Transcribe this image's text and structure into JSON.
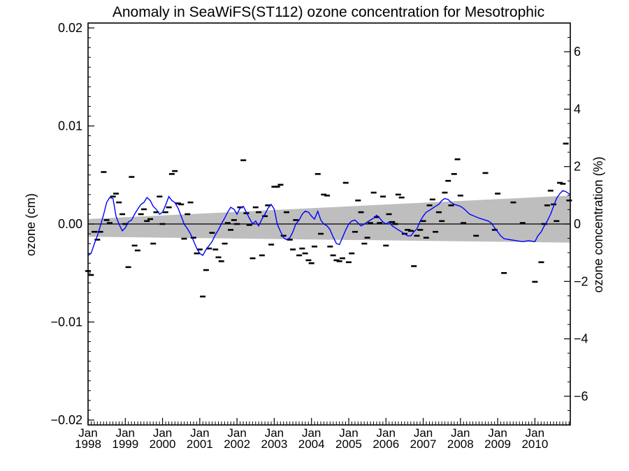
{
  "chart_data": {
    "type": "line",
    "title": "Anomaly in SeaWiFS(ST112) ozone concentration for Mesotrophic",
    "ylabel_left": "ozone (cm)",
    "ylabel_right": "ozone concentration (%)",
    "xlim": [
      1998.0,
      2010.95
    ],
    "ylim_left": [
      -0.0205,
      0.0205
    ],
    "ylim_right": [
      -7.0,
      7.0
    ],
    "yticks_left": [
      {
        "v": 0.02,
        "label": "0.02"
      },
      {
        "v": 0.01,
        "label": "0.01"
      },
      {
        "v": 0.0,
        "label": "0.00"
      },
      {
        "v": -0.01,
        "label": "−0.01"
      },
      {
        "v": -0.02,
        "label": "−0.02"
      }
    ],
    "yticks_right": [
      {
        "v": 6,
        "label": "6"
      },
      {
        "v": 4,
        "label": "4"
      },
      {
        "v": 2,
        "label": "2"
      },
      {
        "v": 0,
        "label": "0"
      },
      {
        "v": -2,
        "label": "−2"
      },
      {
        "v": -4,
        "label": "−4"
      },
      {
        "v": -6,
        "label": "−6"
      }
    ],
    "xticks": [
      {
        "v": 1998,
        "month": "Jan",
        "year": "1998"
      },
      {
        "v": 1999,
        "month": "Jan",
        "year": "1999"
      },
      {
        "v": 2000,
        "month": "Jan",
        "year": "2000"
      },
      {
        "v": 2001,
        "month": "Jan",
        "year": "2001"
      },
      {
        "v": 2002,
        "month": "Jan",
        "year": "2002"
      },
      {
        "v": 2003,
        "month": "Jan",
        "year": "2003"
      },
      {
        "v": 2004,
        "month": "Jan",
        "year": "2004"
      },
      {
        "v": 2005,
        "month": "Jan",
        "year": "2005"
      },
      {
        "v": 2006,
        "month": "Jan",
        "year": "2006"
      },
      {
        "v": 2007,
        "month": "Jan",
        "year": "2007"
      },
      {
        "v": 2008,
        "month": "Jan",
        "year": "2008"
      },
      {
        "v": 2009,
        "month": "Jan",
        "year": "2009"
      },
      {
        "v": 2010,
        "month": "Jan",
        "year": "2010"
      }
    ],
    "trend_band": {
      "x": [
        1998.0,
        2010.95
      ],
      "upper": [
        0.0005,
        0.0029
      ],
      "lower": [
        -0.0013,
        -0.0019
      ]
    },
    "zero_line": 0.0,
    "line_color": "#0000ff",
    "band_color": "#bebebe",
    "series": [
      {
        "kind": "monthly_anomalies",
        "x": [
          1998.0,
          1998.08,
          1998.17,
          1998.25,
          1998.33,
          1998.42,
          1998.5,
          1998.58,
          1998.67,
          1998.75,
          1998.83,
          1998.92,
          1999.0,
          1999.08,
          1999.17,
          1999.25,
          1999.33,
          1999.42,
          1999.5,
          1999.58,
          1999.67,
          1999.75,
          1999.83,
          1999.92,
          2000.0,
          2000.08,
          2000.17,
          2000.25,
          2000.33,
          2000.42,
          2000.5,
          2000.58,
          2000.67,
          2000.75,
          2000.83,
          2000.92,
          2001.0,
          2001.08,
          2001.17,
          2001.25,
          2001.33,
          2001.42,
          2001.5,
          2001.58,
          2001.67,
          2001.75,
          2001.83,
          2001.92,
          2002.0,
          2002.08,
          2002.17,
          2002.25,
          2002.33,
          2002.42,
          2002.5,
          2002.58,
          2002.67,
          2002.75,
          2002.83,
          2002.92,
          2003.0,
          2003.08,
          2003.17,
          2003.25,
          2003.33,
          2003.42,
          2003.5,
          2003.58,
          2003.67,
          2003.75,
          2003.83,
          2003.92,
          2004.0,
          2004.08,
          2004.17,
          2004.25,
          2004.33,
          2004.42,
          2004.5,
          2004.58,
          2004.67,
          2004.75,
          2004.83,
          2004.92,
          2005.0,
          2005.08,
          2005.17,
          2005.25,
          2005.33,
          2005.42,
          2005.5,
          2005.58,
          2005.67,
          2005.75,
          2005.83,
          2005.92,
          2006.0,
          2006.08,
          2006.17,
          2006.25,
          2006.33,
          2006.42,
          2006.5,
          2006.58,
          2006.67,
          2006.75,
          2006.83,
          2006.92,
          2007.0,
          2007.08,
          2007.17,
          2007.25,
          2007.33,
          2007.42,
          2007.5,
          2007.58,
          2007.67,
          2007.75,
          2007.83,
          2007.92,
          2008.0,
          2008.08,
          2008.42,
          2008.67,
          2008.92,
          2009.0,
          2009.17,
          2009.42,
          2009.67,
          2010.0,
          2010.17,
          2010.25,
          2010.33,
          2010.42,
          2010.5,
          2010.58,
          2010.67,
          2010.75,
          2010.83,
          2010.92
        ],
        "y": [
          -0.0048,
          -0.0052,
          -0.0008,
          -0.0016,
          -0.0008,
          0.0053,
          0.0004,
          0.0001,
          0.0028,
          0.0031,
          0.0022,
          0.001,
          0.0,
          -0.0044,
          0.0048,
          -0.0022,
          -0.0027,
          0.001,
          0.0015,
          0.0003,
          0.0005,
          -0.002,
          0.0012,
          0.0028,
          0.0,
          0.0012,
          0.0017,
          0.0051,
          0.0054,
          0.0021,
          0.002,
          -0.0015,
          0.001,
          0.0022,
          -0.0014,
          -0.003,
          -0.0026,
          -0.0074,
          -0.0047,
          -0.0025,
          -0.0009,
          -0.0026,
          -0.0034,
          -0.0038,
          -0.002,
          0.0001,
          -0.0006,
          0.0004,
          0.0,
          0.0017,
          0.0065,
          0.0011,
          -0.0001,
          -0.0035,
          0.0017,
          0.0012,
          -0.0032,
          0.0008,
          0.0019,
          -0.0021,
          0.0038,
          0.0038,
          0.004,
          -0.0012,
          0.0012,
          -0.0016,
          -0.0026,
          0.0004,
          -0.0032,
          -0.0025,
          -0.003,
          -0.0037,
          -0.004,
          -0.0023,
          0.0051,
          -0.001,
          0.003,
          0.0029,
          -0.0023,
          -0.0032,
          -0.0037,
          -0.0038,
          -0.0035,
          0.0042,
          -0.0039,
          -0.003,
          -0.0008,
          0.0024,
          0.0012,
          -0.002,
          -0.0014,
          0.0001,
          0.0032,
          0.0007,
          0.0001,
          0.0028,
          -0.0022,
          0.001,
          0.0002,
          0.0,
          0.003,
          0.0027,
          -0.001,
          -0.0006,
          -0.0007,
          -0.0043,
          -0.0012,
          -0.0006,
          0.0003,
          -0.0014,
          0.0019,
          0.0025,
          -0.0008,
          0.0012,
          0.0003,
          0.0032,
          0.0044,
          0.0019,
          0.0051,
          0.0066,
          0.0029,
          0.0001,
          -0.0012,
          0.0052,
          -0.0006,
          0.0031,
          -0.005,
          0.0022,
          0.0001,
          -0.0059,
          -0.0039,
          0.0,
          0.0019,
          0.0034,
          0.002,
          0.0003,
          0.0042,
          0.0041,
          0.0082,
          0.0024
        ]
      },
      {
        "kind": "running_mean",
        "x": [
          1998.0,
          1998.08,
          1998.17,
          1998.25,
          1998.33,
          1998.42,
          1998.5,
          1998.58,
          1998.67,
          1998.75,
          1998.83,
          1998.92,
          1999.0,
          1999.08,
          1999.17,
          1999.25,
          1999.33,
          1999.42,
          1999.5,
          1999.58,
          1999.67,
          1999.75,
          1999.83,
          1999.92,
          2000.0,
          2000.08,
          2000.17,
          2000.25,
          2000.33,
          2000.42,
          2000.5,
          2000.58,
          2000.67,
          2000.75,
          2000.83,
          2000.92,
          2001.0,
          2001.08,
          2001.17,
          2001.25,
          2001.33,
          2001.42,
          2001.5,
          2001.58,
          2001.67,
          2001.75,
          2001.83,
          2001.92,
          2002.0,
          2002.08,
          2002.17,
          2002.25,
          2002.33,
          2002.42,
          2002.5,
          2002.58,
          2002.67,
          2002.75,
          2002.83,
          2002.92,
          2003.0,
          2003.08,
          2003.17,
          2003.25,
          2003.33,
          2003.42,
          2003.5,
          2003.58,
          2003.67,
          2003.75,
          2003.83,
          2003.92,
          2004.0,
          2004.08,
          2004.17,
          2004.25,
          2004.33,
          2004.42,
          2004.5,
          2004.58,
          2004.67,
          2004.75,
          2004.83,
          2004.92,
          2005.0,
          2005.08,
          2005.17,
          2005.25,
          2005.33,
          2005.42,
          2005.5,
          2005.58,
          2005.67,
          2005.75,
          2005.83,
          2005.92,
          2006.0,
          2006.08,
          2006.17,
          2006.25,
          2006.33,
          2006.42,
          2006.5,
          2006.58,
          2006.67,
          2006.75,
          2006.83,
          2006.92,
          2007.0,
          2007.08,
          2007.17,
          2007.25,
          2007.33,
          2007.42,
          2007.5,
          2007.58,
          2007.67,
          2007.75,
          2007.83,
          2007.92,
          2008.0,
          2008.08,
          2008.25,
          2008.5,
          2008.75,
          2008.83,
          2008.92,
          2009.0,
          2009.08,
          2009.17,
          2009.33,
          2009.5,
          2009.67,
          2009.83,
          2010.0,
          2010.08,
          2010.17,
          2010.25,
          2010.33,
          2010.42,
          2010.5,
          2010.58,
          2010.67,
          2010.75,
          2010.83,
          2010.95
        ],
        "y": [
          -0.0032,
          -0.003,
          -0.002,
          -0.0012,
          -0.0002,
          0.001,
          0.0022,
          0.0027,
          0.0026,
          0.0008,
          0.0,
          -0.0007,
          -0.0004,
          0.0002,
          0.0004,
          0.001,
          0.0015,
          0.002,
          0.0022,
          0.0027,
          0.0024,
          0.0018,
          0.0015,
          0.001,
          0.0012,
          0.0019,
          0.0028,
          0.0024,
          0.0022,
          0.0016,
          0.0008,
          0.0,
          -0.0005,
          -0.001,
          -0.0017,
          -0.0025,
          -0.003,
          -0.0032,
          -0.0026,
          -0.0022,
          -0.0018,
          -0.0011,
          -0.0006,
          0.0,
          0.0006,
          0.0012,
          0.0017,
          0.0015,
          0.001,
          0.0016,
          0.0018,
          0.0012,
          0.0006,
          0.0,
          0.0003,
          -0.0002,
          0.0005,
          0.001,
          0.0016,
          0.002,
          0.0015,
          0.0,
          -0.0008,
          -0.0014,
          -0.0016,
          -0.0014,
          -0.0008,
          0.0,
          0.0004,
          0.001,
          0.0013,
          0.0012,
          0.0008,
          0.0005,
          0.0013,
          0.0004,
          0.0,
          -0.0002,
          -0.0006,
          -0.0013,
          -0.002,
          -0.0021,
          -0.0014,
          -0.0006,
          0.0,
          0.0003,
          0.0004,
          0.0001,
          -0.0002,
          0.0,
          0.0002,
          0.0004,
          0.0006,
          0.0009,
          0.0006,
          0.0002,
          0.0,
          0.0002,
          -0.0002,
          -0.0004,
          -0.0006,
          -0.0008,
          -0.001,
          -0.0012,
          -0.0012,
          -0.0008,
          -0.0005,
          0.0003,
          0.0008,
          0.0012,
          0.0014,
          0.0016,
          0.0018,
          0.002,
          0.0024,
          0.0026,
          0.0025,
          0.0022,
          0.002,
          0.0019,
          0.0018,
          0.0016,
          0.001,
          0.0006,
          0.0003,
          0.0001,
          -0.0004,
          -0.0008,
          -0.0012,
          -0.0015,
          -0.0016,
          -0.0017,
          -0.0018,
          -0.0017,
          -0.0018,
          -0.0012,
          -0.0008,
          -0.0002,
          0.0003,
          0.001,
          0.0018,
          0.0026,
          0.0031,
          0.0034,
          0.0033,
          0.003
        ]
      }
    ]
  }
}
